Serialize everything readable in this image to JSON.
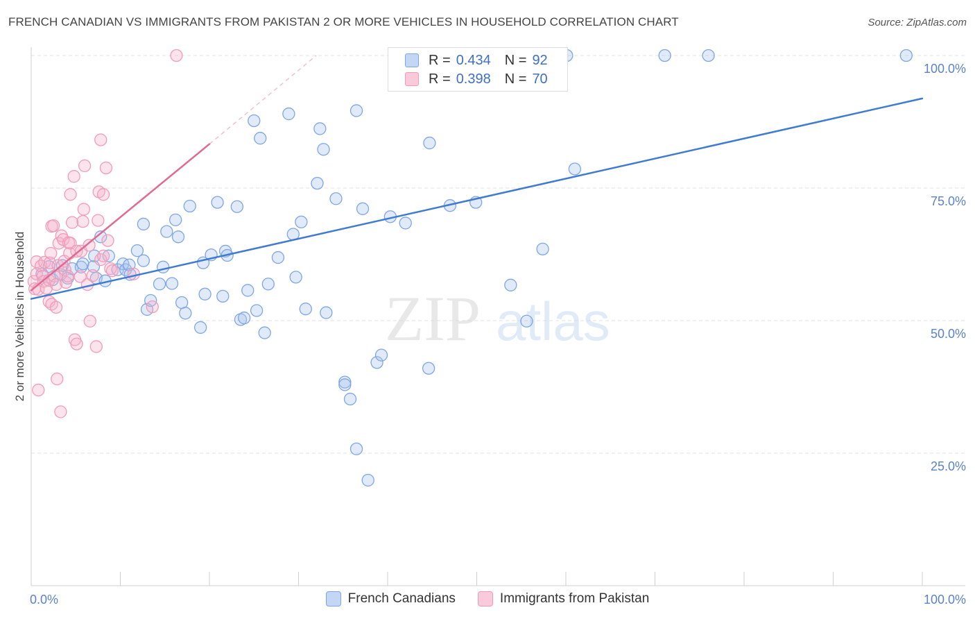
{
  "header": {
    "title": "FRENCH CANADIAN VS IMMIGRANTS FROM PAKISTAN 2 OR MORE VEHICLES IN HOUSEHOLD CORRELATION CHART",
    "source": "Source: ZipAtlas.com"
  },
  "watermark": {
    "zip": "ZIP",
    "atlas": "atlas"
  },
  "legend_box": {
    "rows": [
      {
        "r_label": "R =",
        "r_value": "0.434",
        "n_label": "N =",
        "n_value": "92",
        "color": "#a9c4ee"
      },
      {
        "r_label": "R =",
        "r_value": "0.398",
        "n_label": "N =",
        "n_value": "70",
        "color": "#f6b3c8"
      }
    ]
  },
  "bottom_legend": {
    "items": [
      {
        "label": "French Canadians",
        "color": "#a9c4ee"
      },
      {
        "label": "Immigrants from Pakistan",
        "color": "#f6b3c8"
      }
    ]
  },
  "chart_data": {
    "type": "scatter",
    "title": "FRENCH CANADIAN VS IMMIGRANTS FROM PAKISTAN 2 OR MORE VEHICLES IN HOUSEHOLD CORRELATION CHART",
    "xlabel": "",
    "ylabel": "2 or more Vehicles in Household",
    "xlim": [
      0,
      100
    ],
    "ylim": [
      0,
      100
    ],
    "x_tick_labels": [
      "0.0%",
      "100.0%"
    ],
    "y_ticks": [
      25,
      50,
      75,
      100
    ],
    "y_tick_labels": [
      "25.0%",
      "50.0%",
      "75.0%",
      "100.0%"
    ],
    "grid": "horizontal dashed",
    "legend_placement": "top-center",
    "series": [
      {
        "name": "French Canadians",
        "color": "#7ea6e4",
        "line_color": "#3f7bd0",
        "trend": [
          [
            0,
            54.1
          ],
          [
            100,
            91.9
          ]
        ],
        "points": [
          [
            1.2,
            58.8
          ],
          [
            2.0,
            60.2
          ],
          [
            2.4,
            57.7
          ],
          [
            3.3,
            58.7
          ],
          [
            3.5,
            60.4
          ],
          [
            4.1,
            58.0
          ],
          [
            4.6,
            59.8
          ],
          [
            5.6,
            60.1
          ],
          [
            5.8,
            60.7
          ],
          [
            7.0,
            60.2
          ],
          [
            7.1,
            62.2
          ],
          [
            7.3,
            58.0
          ],
          [
            7.8,
            65.8
          ],
          [
            8.3,
            57.5
          ],
          [
            8.7,
            62.2
          ],
          [
            9.7,
            59.6
          ],
          [
            10.3,
            60.7
          ],
          [
            10.6,
            59.6
          ],
          [
            11.0,
            60.5
          ],
          [
            11.1,
            58.7
          ],
          [
            11.9,
            63.2
          ],
          [
            12.6,
            68.2
          ],
          [
            12.6,
            61.3
          ],
          [
            13.0,
            52.1
          ],
          [
            13.4,
            53.8
          ],
          [
            14.4,
            56.9
          ],
          [
            14.8,
            60.1
          ],
          [
            15.2,
            66.8
          ],
          [
            15.8,
            57.0
          ],
          [
            16.2,
            69.0
          ],
          [
            16.5,
            65.8
          ],
          [
            16.9,
            53.4
          ],
          [
            17.3,
            51.4
          ],
          [
            17.8,
            71.6
          ],
          [
            19.0,
            48.7
          ],
          [
            19.3,
            60.9
          ],
          [
            19.5,
            55.0
          ],
          [
            20.2,
            62.4
          ],
          [
            20.9,
            72.3
          ],
          [
            21.5,
            54.6
          ],
          [
            21.8,
            63.1
          ],
          [
            22.0,
            62.3
          ],
          [
            23.1,
            71.5
          ],
          [
            23.5,
            50.2
          ],
          [
            23.9,
            50.5
          ],
          [
            24.3,
            55.7
          ],
          [
            25.0,
            87.7
          ],
          [
            25.3,
            51.9
          ],
          [
            25.7,
            84.4
          ],
          [
            26.2,
            47.7
          ],
          [
            26.6,
            56.9
          ],
          [
            27.7,
            61.9
          ],
          [
            28.9,
            89.0
          ],
          [
            29.4,
            66.3
          ],
          [
            29.7,
            58.2
          ],
          [
            30.3,
            68.6
          ],
          [
            30.8,
            52.2
          ],
          [
            32.1,
            75.9
          ],
          [
            32.4,
            86.2
          ],
          [
            32.8,
            82.3
          ],
          [
            33.1,
            51.5
          ],
          [
            34.2,
            73.0
          ],
          [
            35.2,
            38.4
          ],
          [
            35.2,
            37.9
          ],
          [
            35.8,
            35.2
          ],
          [
            36.5,
            89.6
          ],
          [
            36.5,
            25.8
          ],
          [
            37.2,
            71.1
          ],
          [
            37.8,
            19.9
          ],
          [
            38.8,
            42.1
          ],
          [
            39.3,
            43.5
          ],
          [
            40.3,
            69.6
          ],
          [
            42.0,
            68.4
          ],
          [
            44.6,
            41.0
          ],
          [
            44.7,
            83.5
          ],
          [
            47.0,
            71.7
          ],
          [
            47.4,
            100.0
          ],
          [
            49.9,
            72.3
          ],
          [
            52.5,
            100.0
          ],
          [
            53.8,
            56.7
          ],
          [
            55.6,
            49.9
          ],
          [
            57.4,
            63.5
          ],
          [
            59.0,
            100.0
          ],
          [
            60.1,
            100.0
          ],
          [
            61.0,
            78.6
          ],
          [
            71.1,
            100.0
          ],
          [
            76.0,
            100.0
          ],
          [
            98.2,
            100.0
          ]
        ]
      },
      {
        "name": "Immigrants from Pakistan",
        "color": "#f29bb8",
        "line_color": "#e06a92",
        "trend": [
          [
            0,
            55.7
          ],
          [
            20,
            83.3
          ]
        ],
        "trend_extension": [
          [
            20,
            83.3
          ],
          [
            32,
            100
          ]
        ],
        "points": [
          [
            0.3,
            57.4
          ],
          [
            0.4,
            56.0
          ],
          [
            0.6,
            58.8
          ],
          [
            0.6,
            61.1
          ],
          [
            0.8,
            55.9
          ],
          [
            0.8,
            36.9
          ],
          [
            1.1,
            60.3
          ],
          [
            1.3,
            58.4
          ],
          [
            1.4,
            57.4
          ],
          [
            1.5,
            61.0
          ],
          [
            1.7,
            56.1
          ],
          [
            2.0,
            53.6
          ],
          [
            2.0,
            57.6
          ],
          [
            2.1,
            60.9
          ],
          [
            2.2,
            62.7
          ],
          [
            2.3,
            67.8
          ],
          [
            2.3,
            53.1
          ],
          [
            2.5,
            67.9
          ],
          [
            2.6,
            58.4
          ],
          [
            2.8,
            52.5
          ],
          [
            2.8,
            56.8
          ],
          [
            2.9,
            39.0
          ],
          [
            3.0,
            60.4
          ],
          [
            3.1,
            64.6
          ],
          [
            3.3,
            32.8
          ],
          [
            3.4,
            66.0
          ],
          [
            3.6,
            65.3
          ],
          [
            3.7,
            61.2
          ],
          [
            3.8,
            59.6
          ],
          [
            3.9,
            57.2
          ],
          [
            4.1,
            58.4
          ],
          [
            4.2,
            64.7
          ],
          [
            4.3,
            62.7
          ],
          [
            4.4,
            64.6
          ],
          [
            4.4,
            73.8
          ],
          [
            4.6,
            68.5
          ],
          [
            4.8,
            77.2
          ],
          [
            4.9,
            46.4
          ],
          [
            5.1,
            63.1
          ],
          [
            5.1,
            45.6
          ],
          [
            5.5,
            58.3
          ],
          [
            5.6,
            63.1
          ],
          [
            5.8,
            68.7
          ],
          [
            5.9,
            71.0
          ],
          [
            6.0,
            79.2
          ],
          [
            6.3,
            56.8
          ],
          [
            6.5,
            64.2
          ],
          [
            6.6,
            49.9
          ],
          [
            6.9,
            58.5
          ],
          [
            7.3,
            45.1
          ],
          [
            7.5,
            68.9
          ],
          [
            7.6,
            74.3
          ],
          [
            7.8,
            84.1
          ],
          [
            7.8,
            61.5
          ],
          [
            8.1,
            62.2
          ],
          [
            8.1,
            73.8
          ],
          [
            8.4,
            78.8
          ],
          [
            8.6,
            65.1
          ],
          [
            8.9,
            59.8
          ],
          [
            9.1,
            59.4
          ],
          [
            11.5,
            58.8
          ],
          [
            13.6,
            52.6
          ],
          [
            16.3,
            100.0
          ]
        ]
      }
    ]
  }
}
